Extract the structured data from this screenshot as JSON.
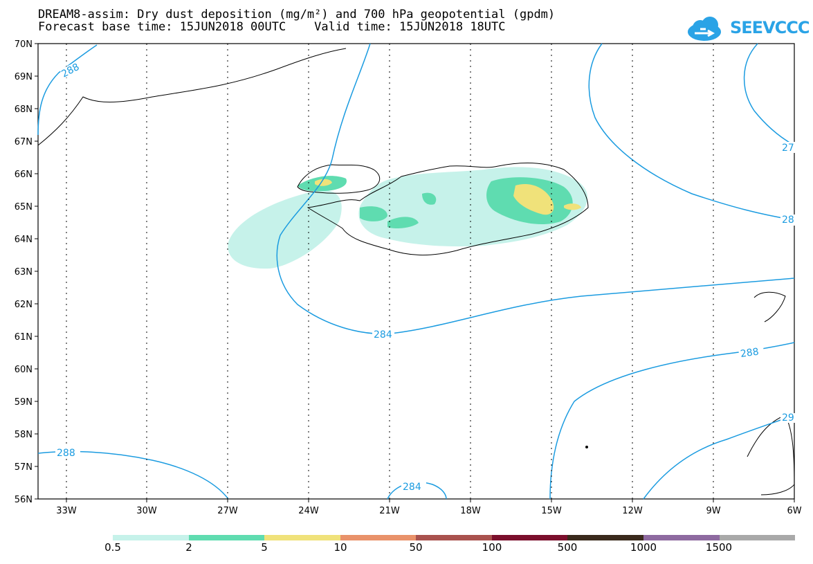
{
  "header": {
    "title_line1": "DREAM8-assim: Dry dust deposition (mg/m²) and 700 hPa geopotential (gpdm)",
    "title_line2": "Forecast base time: 15JUN2018 00UTC    Valid time: 15JUN2018 18UTC",
    "logo_text": "SEEVCCC"
  },
  "axes": {
    "lat_labels": [
      "70N",
      "69N",
      "68N",
      "67N",
      "66N",
      "65N",
      "64N",
      "63N",
      "62N",
      "61N",
      "60N",
      "59N",
      "58N",
      "57N",
      "56N"
    ],
    "lon_labels": [
      "33W",
      "30W",
      "27W",
      "24W",
      "21W",
      "18W",
      "15W",
      "12W",
      "9W",
      "6W"
    ]
  },
  "contour_labels": {
    "c288_nw": "288",
    "c27_e": "27",
    "c28_e": "28",
    "c284_mid": "284",
    "c288_se": "288",
    "c29_se": "29",
    "c288_sw": "288",
    "c284_s": "284"
  },
  "legend": {
    "colors": [
      "#c6f2ea",
      "#5fdcb0",
      "#f0e27a",
      "#e9926a",
      "#a9524e",
      "#7b0f2c",
      "#3a2a1c",
      "#8e6aa0",
      "#a9a9a9"
    ],
    "labels": [
      "0.5",
      "2",
      "5",
      "10",
      "50",
      "100",
      "500",
      "1000",
      "1500"
    ]
  },
  "colors": {
    "contour": "#1a9be0",
    "coast": "#000000"
  }
}
